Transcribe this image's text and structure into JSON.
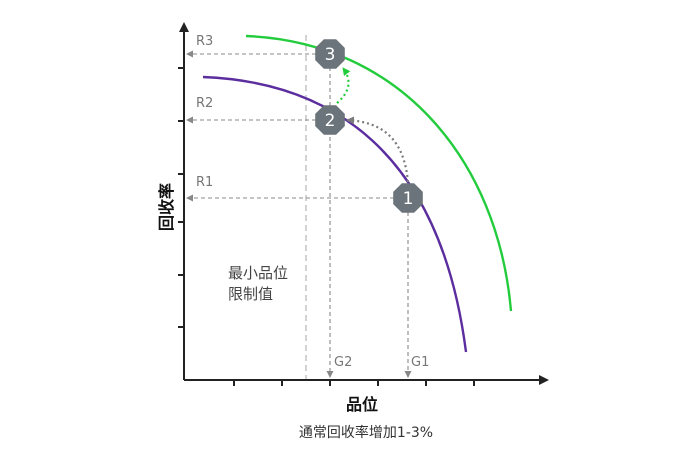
{
  "chart_data": {
    "type": "line",
    "title": "",
    "xlabel": "品位",
    "ylabel": "回收率",
    "caption": "通常回收率增加1-3%",
    "annotation": [
      "最小品位",
      "限制值"
    ],
    "x_ticks": [
      {
        "label": "G2",
        "grade": "G2"
      },
      {
        "label": "G1",
        "grade": "G1"
      }
    ],
    "y_ticks": [
      {
        "label": "R3",
        "recovery": "R3"
      },
      {
        "label": "R2",
        "recovery": "R2"
      },
      {
        "label": "R1",
        "recovery": "R1"
      }
    ],
    "series": [
      {
        "color": "#5b2d9e"
      },
      {
        "color": "#22cc3c"
      }
    ],
    "points": [
      {
        "label": "1",
        "x": "G1",
        "y": "R1"
      },
      {
        "label": "2",
        "x": "G2",
        "y": "R2"
      },
      {
        "label": "3",
        "x": "G2",
        "y": "R3"
      }
    ],
    "arrows": [
      {
        "from": "1",
        "to": "2",
        "color": "#7a7a7a"
      },
      {
        "from": "2",
        "to": "3",
        "color": "#22cc3c"
      }
    ],
    "colors": {
      "axis": "#222222",
      "guide": "#888888",
      "marker": "#6b747a",
      "min_grade_line": "#bbbbbb"
    }
  }
}
